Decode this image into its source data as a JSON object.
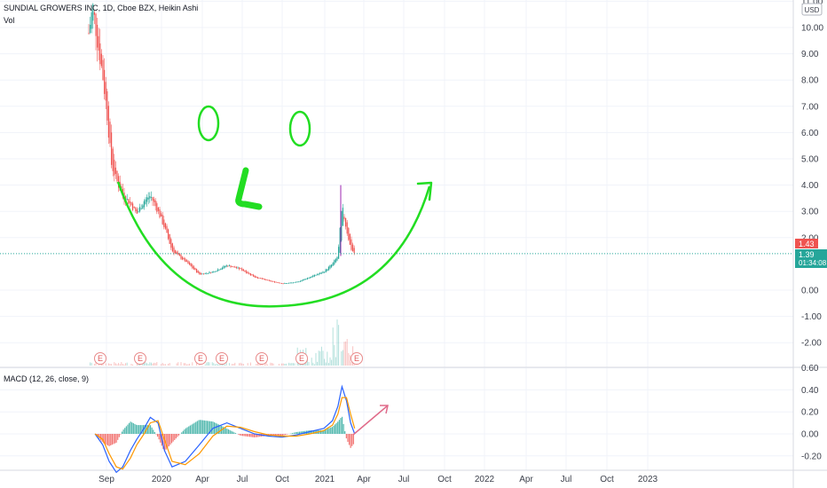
{
  "legend": {
    "title": "SUNDIAL GROWERS INC, 1D, Cboe BZX, Heikin Ashi",
    "vol": "Vol",
    "macd": "MACD (12, 26, close, 9)"
  },
  "price_axis": {
    "currency": "USD",
    "ticks": [
      "11.00",
      "10.00",
      "9.00",
      "8.00",
      "7.00",
      "6.00",
      "5.00",
      "4.00",
      "3.00",
      "2.00",
      "0.00",
      "-1.00",
      "-2.00"
    ]
  },
  "macd_axis": {
    "ticks": [
      "0.60",
      "0.40",
      "0.20",
      "0.00",
      "-0.20"
    ]
  },
  "time_axis": {
    "labels": [
      "Sep",
      "2020",
      "Apr",
      "Jul",
      "Oct",
      "2021",
      "Apr",
      "Jul",
      "Oct",
      "2022",
      "Apr",
      "Jul",
      "Oct",
      "2023"
    ]
  },
  "markers": {
    "last_open": "1.43",
    "last_close": "1.39",
    "countdown": "01:34:08"
  },
  "earnings_label": "E",
  "colors": {
    "up": "#26a69a",
    "down": "#ef5350",
    "drawing": "#22dd22",
    "macd_line": "#2962ff",
    "signal_line": "#ff9800",
    "arrow": "#e06b8a"
  },
  "chart_data": [
    {
      "type": "line",
      "series": [
        {
          "name": "SUNDIAL GROWERS INC, 1D, Cboe BZX, Heikin Ashi",
          "x": [
            "2019-08-01",
            "2019-08-10",
            "2019-08-20",
            "2019-08-31",
            "2019-09-10",
            "2019-09-20",
            "2019-10-01",
            "2019-10-15",
            "2019-11-01",
            "2019-11-15",
            "2019-12-01",
            "2019-12-15",
            "2020-01-01",
            "2020-01-15",
            "2020-02-01",
            "2020-03-01",
            "2020-04-01",
            "2020-05-01",
            "2020-06-01",
            "2020-07-01",
            "2020-08-01",
            "2020-09-01",
            "2020-10-01",
            "2020-11-01",
            "2020-12-01",
            "2021-01-01",
            "2021-01-20",
            "2021-02-01",
            "2021-02-10",
            "2021-02-20",
            "2021-03-01",
            "2021-03-10"
          ],
          "values": [
            9.8,
            10.8,
            9.5,
            8.3,
            6.8,
            4.8,
            4.2,
            3.6,
            3.3,
            2.9,
            3.4,
            3.6,
            3.0,
            2.4,
            1.5,
            1.1,
            0.6,
            0.7,
            0.95,
            0.8,
            0.5,
            0.35,
            0.25,
            0.3,
            0.5,
            0.7,
            1.0,
            1.3,
            3.2,
            2.3,
            1.6,
            1.39
          ]
        }
      ],
      "yticks": [
        "-2.00",
        "-1.00",
        "0.00",
        "2.00",
        "3.00",
        "4.00",
        "5.00",
        "6.00",
        "7.00",
        "8.00",
        "9.00",
        "10.00",
        "11.00"
      ],
      "ylim": [
        -2.9,
        11.0
      ],
      "xlabels": [
        "Sep",
        "2020",
        "Apr",
        "Jul",
        "Oct",
        "2021",
        "Apr",
        "Jul",
        "Oct",
        "2022",
        "Apr",
        "Jul",
        "Oct",
        "2023"
      ],
      "grid": true,
      "legend": "top-left"
    },
    {
      "type": "line",
      "series": [
        {
          "name": "MACD (12, 26, close, 9)",
          "x": [
            "2019-08-15",
            "2019-09-01",
            "2019-09-15",
            "2019-10-01",
            "2019-10-15",
            "2019-11-01",
            "2019-11-15",
            "2019-12-01",
            "2019-12-15",
            "2020-01-01",
            "2020-01-15",
            "2020-02-01",
            "2020-03-01",
            "2020-04-01",
            "2020-05-01",
            "2020-06-01",
            "2020-07-01",
            "2020-08-01",
            "2020-09-01",
            "2020-10-01",
            "2020-11-01",
            "2020-12-01",
            "2021-01-01",
            "2021-01-20",
            "2021-02-01",
            "2021-02-10",
            "2021-02-20",
            "2021-03-01",
            "2021-03-10"
          ],
          "values": [
            0.0,
            -0.1,
            -0.25,
            -0.35,
            -0.3,
            -0.15,
            -0.05,
            0.05,
            0.15,
            0.1,
            -0.15,
            -0.3,
            -0.25,
            -0.1,
            0.05,
            0.1,
            0.05,
            0.0,
            -0.02,
            -0.03,
            -0.01,
            0.02,
            0.05,
            0.12,
            0.25,
            0.43,
            0.3,
            0.1,
            0.0
          ]
        },
        {
          "name": "Signal",
          "x": [
            "2019-08-15",
            "2019-09-01",
            "2019-09-15",
            "2019-10-01",
            "2019-10-15",
            "2019-11-01",
            "2019-11-15",
            "2019-12-01",
            "2019-12-15",
            "2020-01-01",
            "2020-01-15",
            "2020-02-01",
            "2020-03-01",
            "2020-04-01",
            "2020-05-01",
            "2020-06-01",
            "2020-07-01",
            "2020-08-01",
            "2020-09-01",
            "2020-10-01",
            "2020-11-01",
            "2020-12-01",
            "2021-01-01",
            "2021-01-20",
            "2021-02-01",
            "2021-02-10",
            "2021-02-20",
            "2021-03-01",
            "2021-03-10"
          ],
          "values": [
            0.0,
            -0.05,
            -0.18,
            -0.3,
            -0.32,
            -0.22,
            -0.1,
            0.0,
            0.1,
            0.12,
            -0.05,
            -0.25,
            -0.28,
            -0.18,
            -0.02,
            0.07,
            0.06,
            0.02,
            -0.01,
            -0.02,
            -0.02,
            0.0,
            0.03,
            0.08,
            0.18,
            0.33,
            0.33,
            0.18,
            0.05
          ]
        }
      ],
      "yticks": [
        "-0.20",
        "0.00",
        "0.20",
        "0.40",
        "0.60"
      ],
      "ylim": [
        -0.3,
        0.6
      ],
      "grid": true,
      "legend": "top-left"
    }
  ]
}
